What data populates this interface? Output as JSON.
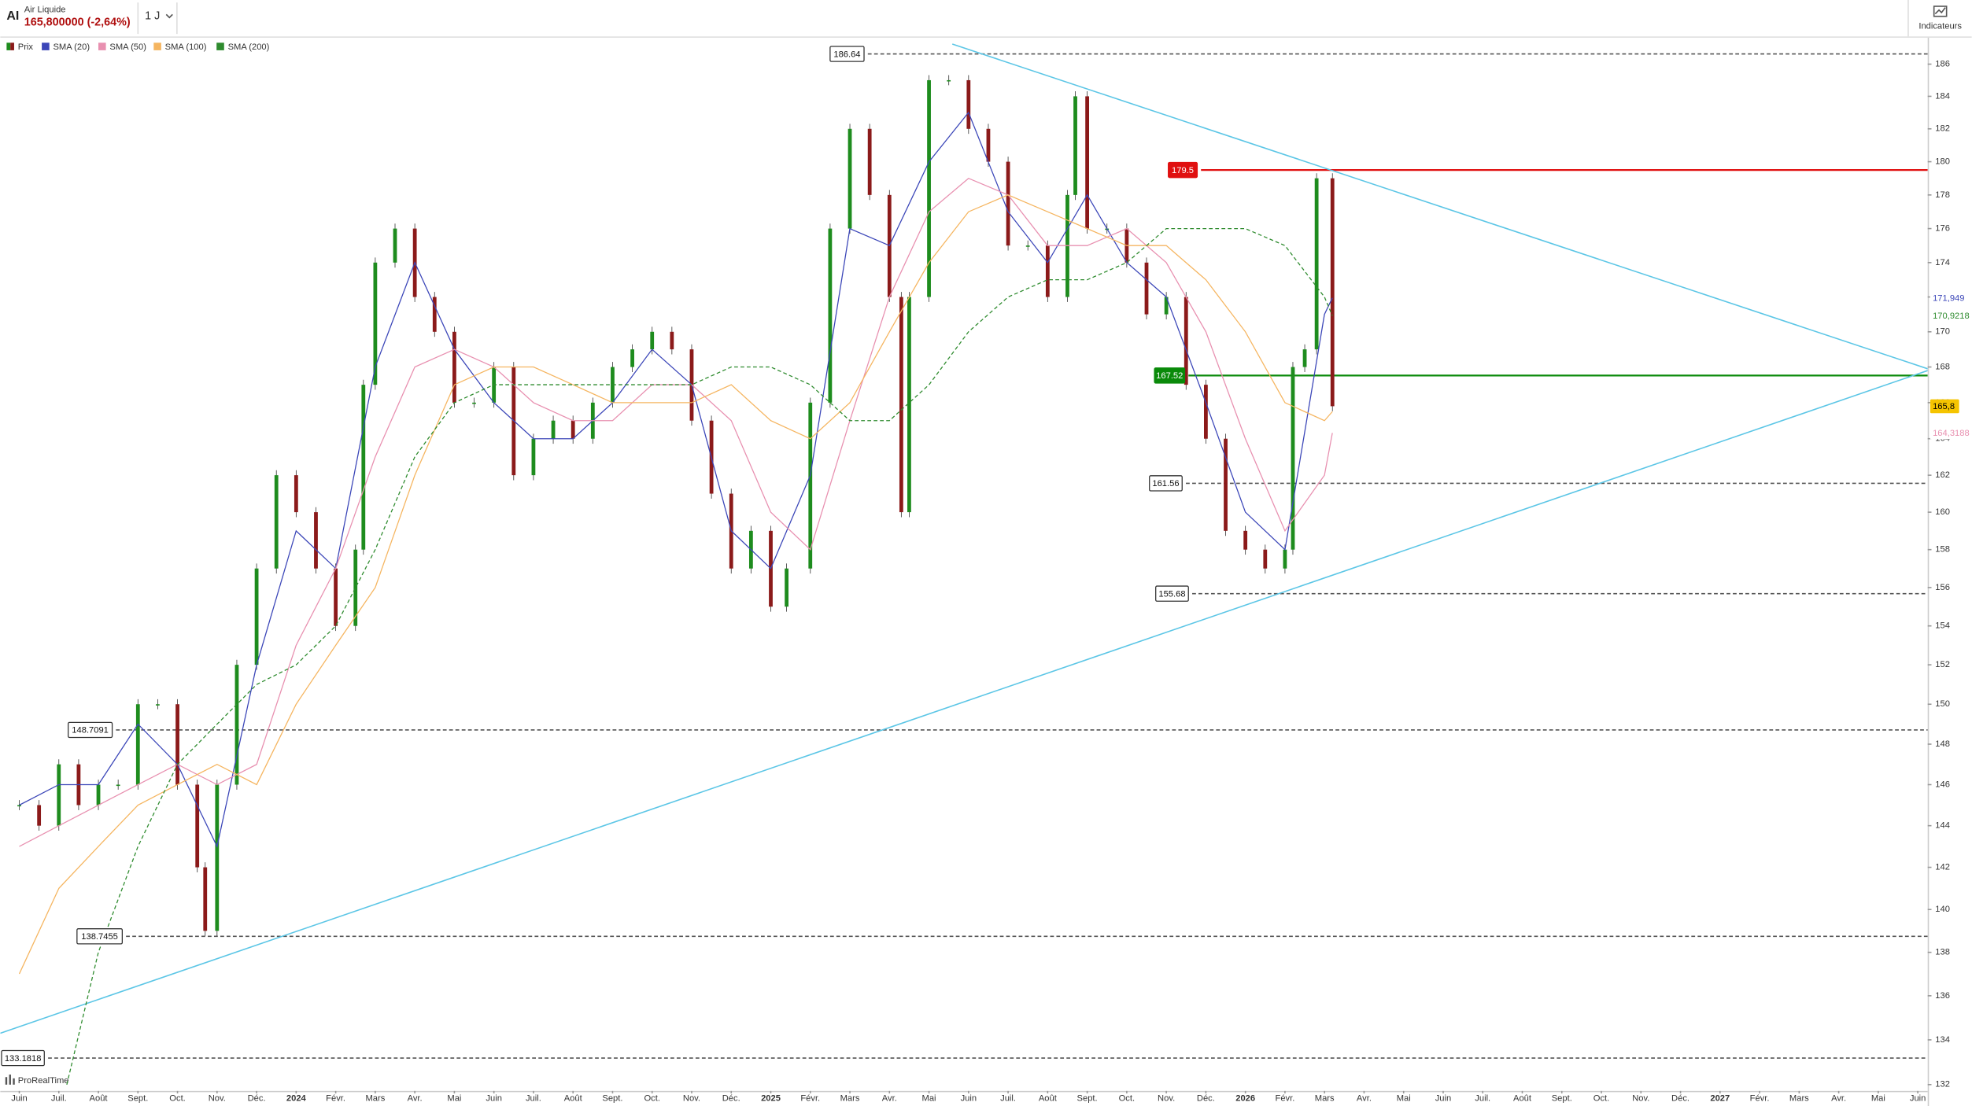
{
  "header": {
    "symbol": "AI",
    "name": "Air Liquide",
    "quote": "165,800000 (-2,64%)",
    "period": "1 J",
    "indicators_button": "Indicateurs",
    "logo": "ProRealTime"
  },
  "chart_data": {
    "type": "candlestick",
    "log_y": true,
    "grid": false,
    "xlim": [
      -0.48,
      48.25
    ],
    "ylim": [
      131.72,
      187.66
    ],
    "yticks": [
      132,
      134,
      136,
      138,
      140,
      142,
      144,
      146,
      148,
      150,
      152,
      154,
      156,
      158,
      160,
      162,
      164,
      166,
      168,
      170,
      172,
      174,
      176,
      178,
      180,
      182,
      184,
      186
    ],
    "xticks": [
      {
        "value": 0,
        "label": "Juin"
      },
      {
        "value": 1,
        "label": "Juil."
      },
      {
        "value": 2,
        "label": "Août"
      },
      {
        "value": 3,
        "label": "Sept."
      },
      {
        "value": 4,
        "label": "Oct."
      },
      {
        "value": 5,
        "label": "Nov."
      },
      {
        "value": 6,
        "label": "Déc."
      },
      {
        "value": 7,
        "label": "2024"
      },
      {
        "value": 8,
        "label": "Févr."
      },
      {
        "value": 9,
        "label": "Mars"
      },
      {
        "value": 10,
        "label": "Avr."
      },
      {
        "value": 11,
        "label": "Mai"
      },
      {
        "value": 12,
        "label": "Juin"
      },
      {
        "value": 13,
        "label": "Juil."
      },
      {
        "value": 14,
        "label": "Août"
      },
      {
        "value": 15,
        "label": "Sept."
      },
      {
        "value": 16,
        "label": "Oct."
      },
      {
        "value": 17,
        "label": "Nov."
      },
      {
        "value": 18,
        "label": "Déc."
      },
      {
        "value": 19,
        "label": "2025"
      },
      {
        "value": 20,
        "label": "Févr."
      },
      {
        "value": 21,
        "label": "Mars"
      },
      {
        "value": 22,
        "label": "Avr."
      },
      {
        "value": 23,
        "label": "Mai"
      },
      {
        "value": 24,
        "label": "Juin"
      },
      {
        "value": 25,
        "label": "Juil."
      },
      {
        "value": 26,
        "label": "Août"
      },
      {
        "value": 27,
        "label": "Sept."
      },
      {
        "value": 28,
        "label": "Oct."
      },
      {
        "value": 29,
        "label": "Nov."
      },
      {
        "value": 30,
        "label": "Déc."
      },
      {
        "value": 31,
        "label": "2026"
      },
      {
        "value": 32,
        "label": "Févr."
      },
      {
        "value": 33,
        "label": "Mars"
      },
      {
        "value": 34,
        "label": "Avr."
      },
      {
        "value": 35,
        "label": "Mai"
      },
      {
        "value": 36,
        "label": "Juin"
      },
      {
        "value": 37,
        "label": "Juil."
      },
      {
        "value": 38,
        "label": "Août"
      },
      {
        "value": 39,
        "label": "Sept."
      },
      {
        "value": 40,
        "label": "Oct."
      },
      {
        "value": 41,
        "label": "Nov."
      },
      {
        "value": 42,
        "label": "Déc."
      },
      {
        "value": 43,
        "label": "2027"
      },
      {
        "value": 44,
        "label": "Févr."
      },
      {
        "value": 45,
        "label": "Mars"
      },
      {
        "value": 46,
        "label": "Avr."
      },
      {
        "value": 47,
        "label": "Mai"
      },
      {
        "value": 48,
        "label": "Juin"
      }
    ],
    "series": [
      {
        "name": "Prix",
        "kind": "price",
        "up_color": "#1e8c1e",
        "down_color": "#8b1a1a",
        "last_label": "165,8",
        "label_color": "#f5c400",
        "x": [
          0,
          0.5,
          1,
          1.5,
          2,
          2.5,
          3,
          3.5,
          4,
          4.5,
          4.7,
          5,
          5.5,
          6,
          6.5,
          7,
          7.5,
          8,
          8.5,
          8.7,
          9,
          9.5,
          10,
          10.5,
          11,
          11.5,
          12,
          12.5,
          13,
          13.5,
          14,
          14.5,
          15,
          15.5,
          16,
          16.5,
          17,
          17.5,
          18,
          18.5,
          19,
          19.4,
          20,
          20.5,
          21,
          21.5,
          22,
          22.3,
          22.5,
          23,
          23.5,
          24,
          24.5,
          25,
          25.5,
          26,
          26.5,
          26.7,
          27,
          27.5,
          28,
          28.5,
          29,
          29.5,
          30,
          30.5,
          31,
          31.5,
          32,
          32.2,
          32.5,
          32.8,
          33.2
        ],
        "values": [
          145,
          144,
          147,
          145,
          146,
          146,
          150,
          150,
          146,
          142,
          139,
          146,
          152,
          157,
          162,
          160,
          157,
          154,
          158,
          167,
          174,
          176,
          172,
          170,
          166,
          166,
          168,
          162,
          164,
          165,
          164,
          166,
          168,
          169,
          170,
          169,
          165,
          161,
          157,
          159,
          155,
          157,
          166,
          176,
          182,
          178,
          172,
          160,
          172,
          185,
          185,
          182,
          180,
          175,
          175,
          172,
          178,
          184,
          176,
          176,
          174,
          171,
          172,
          167,
          164,
          159,
          158,
          157,
          158,
          168,
          169,
          179,
          165.8
        ]
      },
      {
        "name": "SMA (20)",
        "kind": "line",
        "color": "#3b46b8",
        "last_label": "171,949",
        "x": [
          0,
          1,
          2,
          3,
          4,
          5,
          6,
          7,
          8,
          9,
          10,
          11,
          12,
          13,
          14,
          15,
          16,
          17,
          18,
          19,
          20,
          21,
          22,
          23,
          24,
          25,
          26,
          27,
          28,
          29,
          30,
          31,
          32,
          33,
          33.2
        ],
        "values": [
          145,
          146,
          146,
          149,
          147,
          143,
          152,
          159,
          157,
          168,
          174,
          169,
          166,
          164,
          164,
          166,
          169,
          167,
          159,
          157,
          162,
          176,
          175,
          180,
          183,
          177,
          174,
          178,
          174,
          172,
          166,
          160,
          158,
          171,
          171.949
        ]
      },
      {
        "name": "SMA (50)",
        "kind": "line",
        "color": "#e890b0",
        "last_label": "164,3188",
        "x": [
          0,
          1,
          2,
          3,
          4,
          5,
          6,
          7,
          8,
          9,
          10,
          11,
          12,
          13,
          14,
          15,
          16,
          17,
          18,
          19,
          20,
          21,
          22,
          23,
          24,
          25,
          26,
          27,
          28,
          29,
          30,
          31,
          32,
          33,
          33.2
        ],
        "values": [
          143,
          144,
          145,
          146,
          147,
          146,
          147,
          153,
          157,
          163,
          168,
          169,
          168,
          166,
          165,
          165,
          167,
          167,
          165,
          160,
          158,
          165,
          172,
          177,
          179,
          178,
          175,
          175,
          176,
          174,
          170,
          164,
          159,
          162,
          164.3188
        ]
      },
      {
        "name": "SMA (100)",
        "kind": "line",
        "color": "#f5b560",
        "x": [
          0,
          1,
          2,
          3,
          4,
          5,
          6,
          7,
          8,
          9,
          10,
          11,
          12,
          13,
          14,
          15,
          16,
          17,
          18,
          19,
          20,
          21,
          22,
          23,
          24,
          25,
          26,
          27,
          28,
          29,
          30,
          31,
          32,
          33,
          33.2
        ],
        "values": [
          137,
          141,
          143,
          145,
          146,
          147,
          146,
          150,
          153,
          156,
          162,
          167,
          168,
          168,
          167,
          166,
          166,
          166,
          167,
          165,
          164,
          166,
          170,
          174,
          177,
          178,
          177,
          176,
          175,
          175,
          173,
          170,
          166,
          165,
          165.5
        ]
      },
      {
        "name": "SMA (200)",
        "kind": "dashed",
        "color": "#2e8b2e",
        "last_label": "170,9218",
        "x": [
          1.2,
          2,
          3,
          4,
          5,
          6,
          7,
          8,
          9,
          10,
          11,
          12,
          13,
          14,
          15,
          16,
          17,
          18,
          19,
          20,
          21,
          22,
          23,
          24,
          25,
          26,
          27,
          28,
          29,
          30,
          31,
          32,
          33,
          33.2
        ],
        "values": [
          132,
          138,
          143,
          147,
          149,
          151,
          152,
          154,
          158,
          163,
          166,
          167,
          167,
          167,
          167,
          167,
          167,
          168,
          168,
          167,
          165,
          165,
          167,
          170,
          172,
          173,
          173,
          174,
          176,
          176,
          176,
          175,
          172,
          170.9218
        ]
      }
    ],
    "levels": [
      {
        "value": 186.64,
        "color": "#555555",
        "style": "dashed"
      },
      {
        "value": 179.5,
        "color": "#e01010",
        "style": "solid"
      },
      {
        "value": 167.52,
        "color": "#0a8a0a",
        "style": "solid"
      },
      {
        "value": 161.56,
        "color": "#555555",
        "style": "dashed"
      },
      {
        "value": 155.68,
        "color": "#555555",
        "style": "dashed"
      },
      {
        "value": 148.7091,
        "color": "#555555",
        "style": "dashed"
      },
      {
        "value": 138.7455,
        "color": "#555555",
        "style": "dashed"
      },
      {
        "value": 133.1818,
        "color": "#555555",
        "style": "dashed"
      }
    ],
    "trendlines": [
      {
        "x": [
          23.59,
          48.25
        ],
        "values": [
          187.26,
          167.9
        ],
        "color": "#5cc6e6"
      },
      {
        "x": [
          -0.48,
          48.25
        ],
        "values": [
          134.3,
          167.8
        ],
        "color": "#5cc6e6"
      }
    ]
  }
}
